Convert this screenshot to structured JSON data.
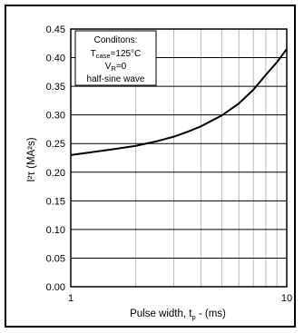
{
  "chart_data": {
    "type": "line",
    "xscale": "log",
    "xlim": [
      1,
      10
    ],
    "ylim": [
      0,
      0.45
    ],
    "x_tick_labels": [
      "1",
      "10"
    ],
    "y_tick_labels": [
      "0.00",
      "0.05",
      "0.10",
      "0.15",
      "0.20",
      "0.25",
      "0.30",
      "0.35",
      "0.40",
      "0.45"
    ],
    "xlabel_main": "Pulse width, t",
    "xlabel_sub": "p",
    "xlabel_unit": " -  (ms)",
    "ylabel": "I²τ (MA²s)",
    "grid": true,
    "annotation": {
      "title": "Conditons:",
      "line1_main": "T",
      "line1_sub": "case",
      "line1_rest": "=125°C",
      "line2_main": "V",
      "line2_sub": "R",
      "line2_rest": "=0",
      "line3": "half-sine wave"
    },
    "series": [
      {
        "x": [
          1,
          1.5,
          2,
          2.5,
          3,
          3.5,
          4,
          5,
          6,
          7,
          8,
          9,
          10
        ],
        "values": [
          0.23,
          0.239,
          0.246,
          0.254,
          0.262,
          0.271,
          0.28,
          0.299,
          0.32,
          0.344,
          0.37,
          0.392,
          0.415
        ]
      }
    ],
    "line_color": "#000000"
  }
}
